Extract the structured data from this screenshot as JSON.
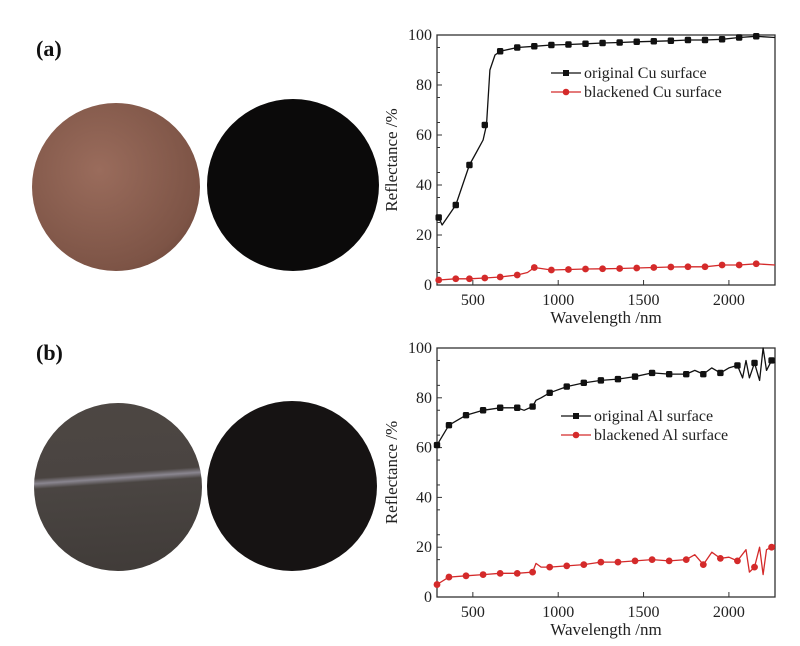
{
  "panels": [
    {
      "label": "(a)",
      "photo_colors": [
        "#8a5e4f",
        "#0b0a0a"
      ]
    },
    {
      "label": "(b)",
      "photo_colors": [
        "#4a4541",
        "#161313"
      ]
    }
  ],
  "chart_data": [
    {
      "type": "line",
      "xlabel": "Wavelength /nm",
      "ylabel": "Reflectance /%",
      "xlim": [
        290,
        2270
      ],
      "ylim": [
        0,
        100
      ],
      "xticks": [
        500,
        1000,
        1500,
        2000
      ],
      "yticks": [
        0,
        20,
        40,
        60,
        80,
        100
      ],
      "grid": false,
      "legend_position": "upper-right",
      "series": [
        {
          "name": "original Cu surface",
          "color": "#111111",
          "x": [
            300,
            320,
            400,
            480,
            520,
            560,
            580,
            600,
            630,
            660,
            760,
            860,
            960,
            1060,
            1160,
            1260,
            1360,
            1460,
            1560,
            1660,
            1760,
            1860,
            1960,
            2060,
            2160,
            2270
          ],
          "y": [
            27,
            24,
            32,
            48,
            53,
            58,
            64,
            86,
            92,
            93.5,
            95,
            95.5,
            96,
            96.2,
            96.5,
            96.8,
            97,
            97.3,
            97.5,
            97.7,
            98,
            98,
            98.3,
            99,
            99.5,
            99
          ],
          "markers_x": [
            300,
            400,
            480,
            570,
            660,
            760,
            860,
            960,
            1060,
            1160,
            1260,
            1360,
            1460,
            1560,
            1660,
            1760,
            1860,
            1960,
            2060,
            2160
          ],
          "markers_y": [
            27,
            32,
            48,
            64,
            93.5,
            95,
            95.5,
            96,
            96.2,
            96.5,
            96.8,
            97,
            97.3,
            97.5,
            97.7,
            98,
            98,
            98.3,
            99,
            99.5
          ]
        },
        {
          "name": "blackened Cu surface",
          "color": "#d42a2a",
          "x": [
            300,
            400,
            480,
            570,
            660,
            760,
            820,
            860,
            960,
            1060,
            1160,
            1260,
            1360,
            1460,
            1560,
            1660,
            1760,
            1860,
            1960,
            2060,
            2160,
            2270
          ],
          "y": [
            2,
            2.5,
            2.5,
            2.8,
            3.2,
            4,
            5,
            7,
            6,
            6.2,
            6.4,
            6.5,
            6.6,
            6.8,
            7,
            7.2,
            7.3,
            7.3,
            8,
            8,
            8.5,
            8
          ],
          "markers_x": [
            300,
            400,
            480,
            570,
            660,
            760,
            860,
            960,
            1060,
            1160,
            1260,
            1360,
            1460,
            1560,
            1660,
            1760,
            1860,
            1960,
            2060,
            2160
          ],
          "markers_y": [
            2,
            2.5,
            2.5,
            2.8,
            3.2,
            4,
            7,
            6,
            6.2,
            6.4,
            6.5,
            6.6,
            6.8,
            7,
            7.2,
            7.3,
            7.3,
            8,
            8,
            8.5
          ]
        }
      ]
    },
    {
      "type": "line",
      "xlabel": "Wavelength /nm",
      "ylabel": "Reflectance /%",
      "xlim": [
        290,
        2270
      ],
      "ylim": [
        0,
        100
      ],
      "xticks": [
        500,
        1000,
        1500,
        2000
      ],
      "yticks": [
        0,
        20,
        40,
        60,
        80,
        100
      ],
      "grid": false,
      "legend_position": "upper-right",
      "series": [
        {
          "name": "original Al surface",
          "color": "#111111",
          "x": [
            290,
            360,
            460,
            560,
            660,
            760,
            800,
            850,
            870,
            900,
            950,
            1050,
            1150,
            1250,
            1350,
            1450,
            1550,
            1650,
            1750,
            1800,
            1850,
            1900,
            1950,
            2000,
            2050,
            2080,
            2100,
            2120,
            2150,
            2180,
            2200,
            2220,
            2250,
            2270
          ],
          "y": [
            61,
            69,
            73,
            75,
            76,
            76,
            75,
            76.5,
            79,
            80,
            82,
            84.5,
            86,
            87,
            87.5,
            88.5,
            90,
            89.5,
            89.5,
            91,
            89.5,
            92,
            90,
            92,
            93,
            88,
            95,
            88,
            94,
            87,
            100,
            91,
            95,
            94
          ],
          "markers_x": [
            290,
            360,
            460,
            560,
            660,
            760,
            850,
            950,
            1050,
            1150,
            1250,
            1350,
            1450,
            1550,
            1650,
            1750,
            1850,
            1950,
            2050,
            2150,
            2250
          ],
          "markers_y": [
            61,
            69,
            73,
            75,
            76,
            76,
            76.5,
            82,
            84.5,
            86,
            87,
            87.5,
            88.5,
            90,
            89.5,
            89.5,
            89.5,
            90,
            93,
            94,
            95
          ]
        },
        {
          "name": "blackened Al surface",
          "color": "#d42a2a",
          "x": [
            290,
            360,
            460,
            560,
            660,
            760,
            850,
            870,
            900,
            950,
            1050,
            1150,
            1250,
            1350,
            1450,
            1550,
            1650,
            1750,
            1800,
            1850,
            1900,
            1950,
            2000,
            2050,
            2100,
            2120,
            2150,
            2180,
            2200,
            2220,
            2250,
            2270
          ],
          "y": [
            5,
            8,
            8.5,
            9,
            9.5,
            9.5,
            10,
            13.5,
            12,
            12,
            12.5,
            13,
            14,
            14,
            14.5,
            15,
            14.5,
            15,
            17,
            13,
            18,
            15.5,
            16,
            14.5,
            19,
            10,
            12,
            20,
            9,
            19,
            20,
            21
          ],
          "markers_x": [
            290,
            360,
            460,
            560,
            660,
            760,
            850,
            950,
            1050,
            1150,
            1250,
            1350,
            1450,
            1550,
            1650,
            1750,
            1850,
            1950,
            2050,
            2150,
            2250
          ],
          "markers_y": [
            5,
            8,
            8.5,
            9,
            9.5,
            9.5,
            10,
            12,
            12.5,
            13,
            14,
            14,
            14.5,
            15,
            14.5,
            15,
            13,
            15.5,
            14.5,
            12,
            20
          ]
        }
      ]
    }
  ]
}
